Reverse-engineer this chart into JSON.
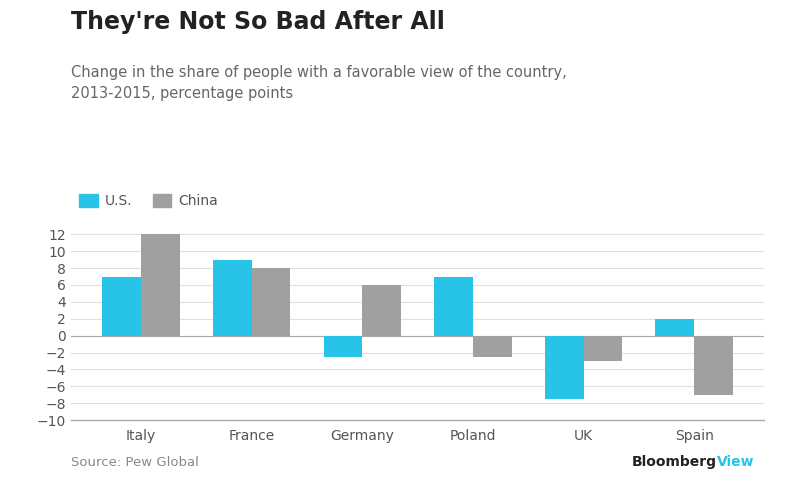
{
  "title": "They're Not So Bad After All",
  "subtitle": "Change in the share of people with a favorable view of the country,\n2013-2015, percentage points",
  "categories": [
    "Italy",
    "France",
    "Germany",
    "Poland",
    "UK",
    "Spain"
  ],
  "us_values": [
    7,
    9,
    -2.5,
    7,
    -7.5,
    2
  ],
  "china_values": [
    12,
    8,
    6,
    -2.5,
    -3,
    -7
  ],
  "us_color": "#27C4E8",
  "china_color": "#A0A0A0",
  "ylim": [
    -10,
    14
  ],
  "yticks": [
    -10,
    -8,
    -6,
    -4,
    -2,
    0,
    2,
    4,
    6,
    8,
    10,
    12
  ],
  "source_text": "Source: Pew Global",
  "bloomberg_black": "Bloomberg",
  "bloomberg_blue": "View",
  "bloomberg_color": "#27C4E8",
  "background_color": "#FFFFFF",
  "legend_us": "U.S.",
  "legend_china": "China",
  "bar_width": 0.35,
  "title_fontsize": 17,
  "subtitle_fontsize": 10.5,
  "axis_fontsize": 10,
  "source_fontsize": 9.5
}
